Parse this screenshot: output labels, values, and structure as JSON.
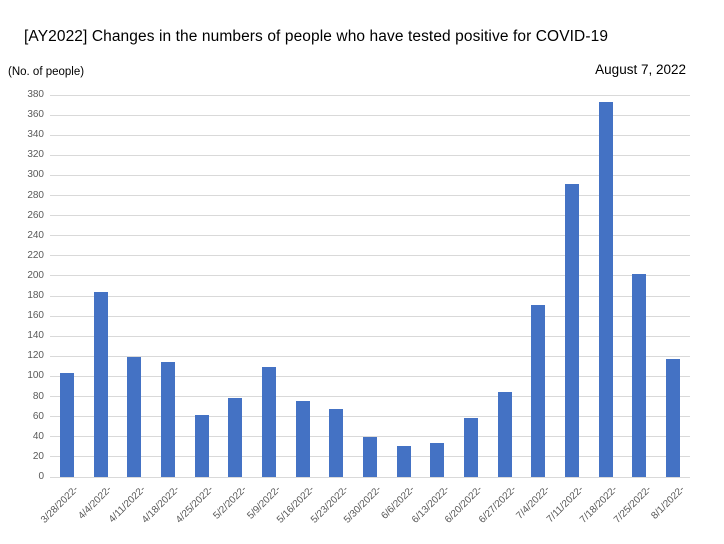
{
  "chart_data": {
    "type": "bar",
    "title": "[AY2022] Changes in the numbers of people who have tested positive for COVID-19",
    "date_label": "August 7, 2022",
    "ylabel": "(No. of people)",
    "xlabel": "",
    "categories": [
      "3/28/2022-",
      "4/4/2022-",
      "4/11/2022-",
      "4/18/2022-",
      "4/25/2022-",
      "5/2/2022-",
      "5/9/2022-",
      "5/16/2022-",
      "5/23/2022-",
      "5/30/2022-",
      "6/6/2022-",
      "6/13/2022-",
      "6/20/2022-",
      "6/27/2022-",
      "7/4/2022-",
      "7/11/2022-",
      "7/18/2022-",
      "7/25/2022-",
      "8/1/2022-"
    ],
    "values": [
      103,
      184,
      119,
      114,
      62,
      79,
      109,
      76,
      68,
      40,
      31,
      34,
      59,
      85,
      171,
      291,
      373,
      202,
      117
    ],
    "ylim": [
      0,
      380
    ],
    "ytick_step": 20,
    "grid": true,
    "legend": false,
    "bar_color": "#4472c4",
    "gridline_color": "#d9d9d9",
    "axis_text_color": "#595959"
  }
}
